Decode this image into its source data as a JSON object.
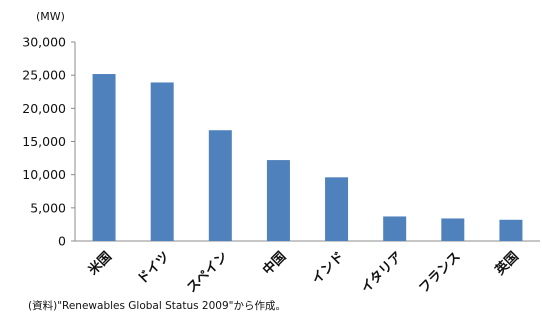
{
  "chart_data": {
    "type": "bar",
    "unit_label": "(MW)",
    "categories": [
      "米国",
      "ドイツ",
      "スペイン",
      "中国",
      "インド",
      "イタリア",
      "フランス",
      "英国"
    ],
    "values": [
      25170,
      23900,
      16700,
      12200,
      9600,
      3700,
      3400,
      3200
    ],
    "y_ticks": [
      "0",
      "5,000",
      "10,000",
      "15,000",
      "20,000",
      "25,000",
      "30,000"
    ],
    "ylim": [
      0,
      30000
    ],
    "grid": false,
    "legend": "none",
    "bar_color": "#4f81bd",
    "axis_color": "#8c8c8c"
  },
  "source_note": "(資料)\"Renewables Global Status 2009\"から作成。"
}
